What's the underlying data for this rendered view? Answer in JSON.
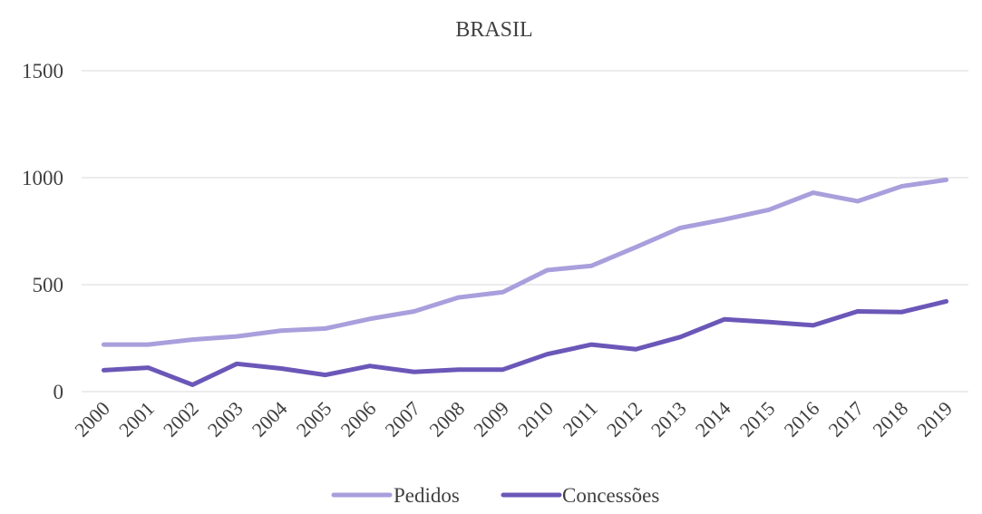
{
  "chart_data": {
    "type": "line",
    "title": "BRASIL",
    "xlabel": "",
    "ylabel": "",
    "categories": [
      "2000",
      "2001",
      "2002",
      "2003",
      "2004",
      "2005",
      "2006",
      "2007",
      "2008",
      "2009",
      "2010",
      "2011",
      "2012",
      "2013",
      "2014",
      "2015",
      "2016",
      "2017",
      "2018",
      "2019"
    ],
    "ylim": [
      0,
      1500
    ],
    "yticks": [
      0,
      500,
      1000,
      1500
    ],
    "grid": true,
    "legend_position": "bottom",
    "series": [
      {
        "name": "Pedidos",
        "color": "#a99fdc",
        "values": [
          220,
          220,
          243,
          258,
          285,
          295,
          340,
          375,
          440,
          465,
          568,
          588,
          675,
          765,
          805,
          850,
          930,
          890,
          960,
          990
        ]
      },
      {
        "name": "Concessões",
        "color": "#6b57b8",
        "values": [
          100,
          112,
          32,
          130,
          108,
          78,
          120,
          92,
          103,
          103,
          175,
          220,
          198,
          255,
          338,
          325,
          310,
          375,
          372,
          422
        ]
      }
    ]
  }
}
